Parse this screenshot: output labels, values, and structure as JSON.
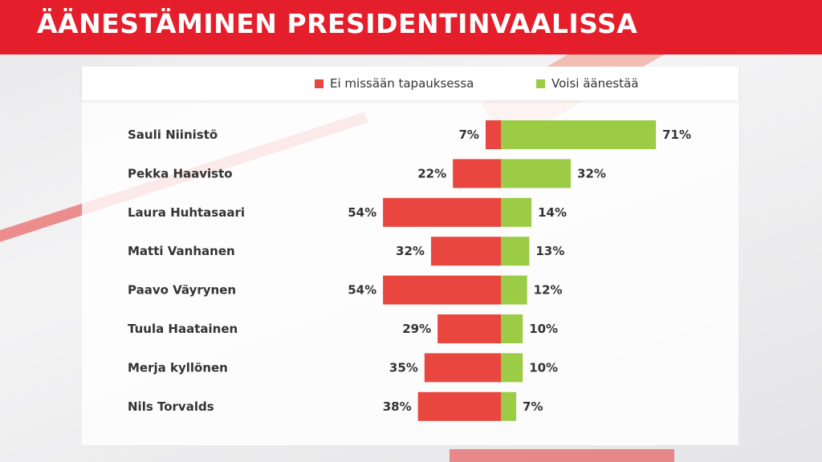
{
  "header": {
    "title": "ÄÄNESTÄMINEN PRESIDENTINVAALISSA"
  },
  "chart_data": {
    "type": "bar",
    "orientation": "horizontal-diverging",
    "title": "ÄÄNESTÄMINEN PRESIDENTINVAALISSA",
    "categories": [
      "Sauli Niinistö",
      "Pekka Haavisto",
      "Laura Huhtasaari",
      "Matti Vanhanen",
      "Paavo Väyrynen",
      "Tuula Haatainen",
      "Merja kyllönen",
      "Nils Torvalds"
    ],
    "series": [
      {
        "name": "Ei missään tapauksessa",
        "color": "#e8463e",
        "values": [
          7,
          22,
          54,
          32,
          54,
          29,
          35,
          38
        ]
      },
      {
        "name": "Voisi äänestää",
        "color": "#9ccb45",
        "values": [
          71,
          32,
          14,
          13,
          12,
          10,
          10,
          7
        ]
      }
    ],
    "labels_neg": [
      "7%",
      "22%",
      "54%",
      "32%",
      "54%",
      "29%",
      "35%",
      "38%"
    ],
    "labels_pos": [
      "71%",
      "32%",
      "14%",
      "13%",
      "12%",
      "10%",
      "10%",
      "7%"
    ],
    "legend_position": "top",
    "grid": false
  }
}
